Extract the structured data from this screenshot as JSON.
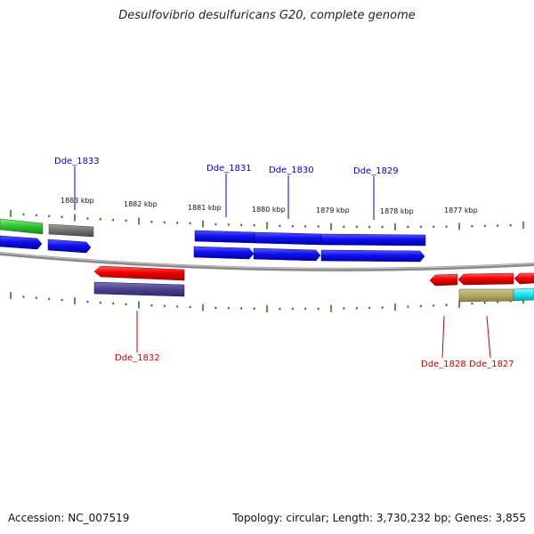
{
  "title": "Desulfovibrio desulfuricans G20, complete genome",
  "footer": {
    "accession": "Accession: NC_007519",
    "summary": "Topology: circular; Length: 3,730,232 bp; Genes: 3,855"
  },
  "colors": {
    "forward_label": "#0000cc",
    "reverse_label": "#cc0000",
    "tick": "#2e7d1a",
    "backbone": "#8a8a8a"
  },
  "scale_labels": [
    "1883 kbp",
    "1882 kbp",
    "1881 kbp",
    "1880 kbp",
    "1879 kbp",
    "1878 kbp",
    "1877 kbp"
  ],
  "gene_labels": {
    "forward": [
      "Dde_1833",
      "Dde_1831",
      "Dde_1830",
      "Dde_1829"
    ],
    "reverse": [
      "Dde_1832",
      "Dde_1828",
      "Dde_1827"
    ]
  }
}
